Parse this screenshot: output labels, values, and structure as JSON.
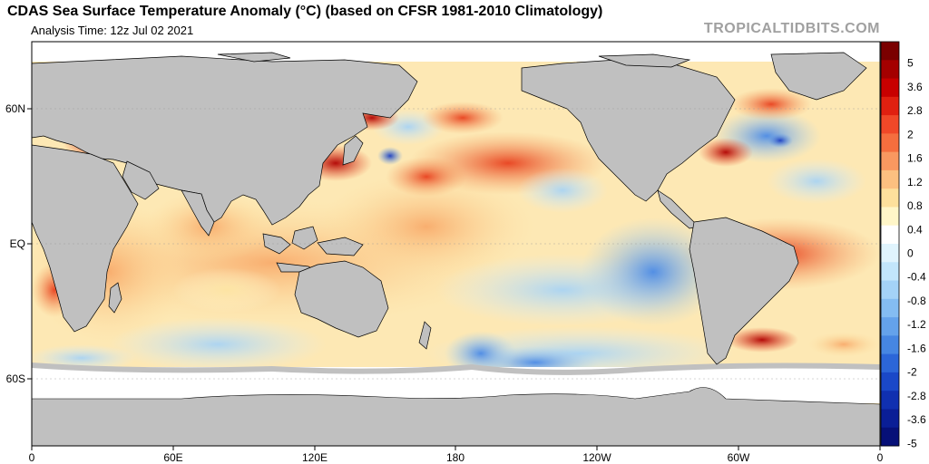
{
  "header": {
    "title": "CDAS Sea Surface Temperature Anomaly (°C) (based on CFSR 1981-2010 Climatology)",
    "analysis_time": "Analysis Time: 12z Jul 02 2021",
    "brand": "TROPICALTIDBITS.COM"
  },
  "axes": {
    "lat_ticks": [
      "60N",
      "EQ",
      "60S"
    ],
    "lon_ticks": [
      "0",
      "60E",
      "120E",
      "180",
      "120W",
      "60W",
      "0"
    ]
  },
  "colorbar": {
    "labels": [
      "5",
      "3.6",
      "2.8",
      "2",
      "1.6",
      "1.2",
      "0.8",
      "0.4",
      "0",
      "-0.4",
      "-0.8",
      "-1.2",
      "-1.6",
      "-2",
      "-2.8",
      "-3.6",
      "-5"
    ],
    "colors": [
      "#7a0000",
      "#a40000",
      "#c80000",
      "#e02010",
      "#f04828",
      "#f56e3e",
      "#f99860",
      "#fcc080",
      "#fde09c",
      "#fff6c8",
      "#ffffff",
      "#e0f4fd",
      "#c2e6fb",
      "#a4d2f7",
      "#84bcf2",
      "#64a2eb",
      "#4686e2",
      "#2c66d8",
      "#1a48c8",
      "#1030b0",
      "#0a1e96",
      "#061078"
    ]
  }
}
